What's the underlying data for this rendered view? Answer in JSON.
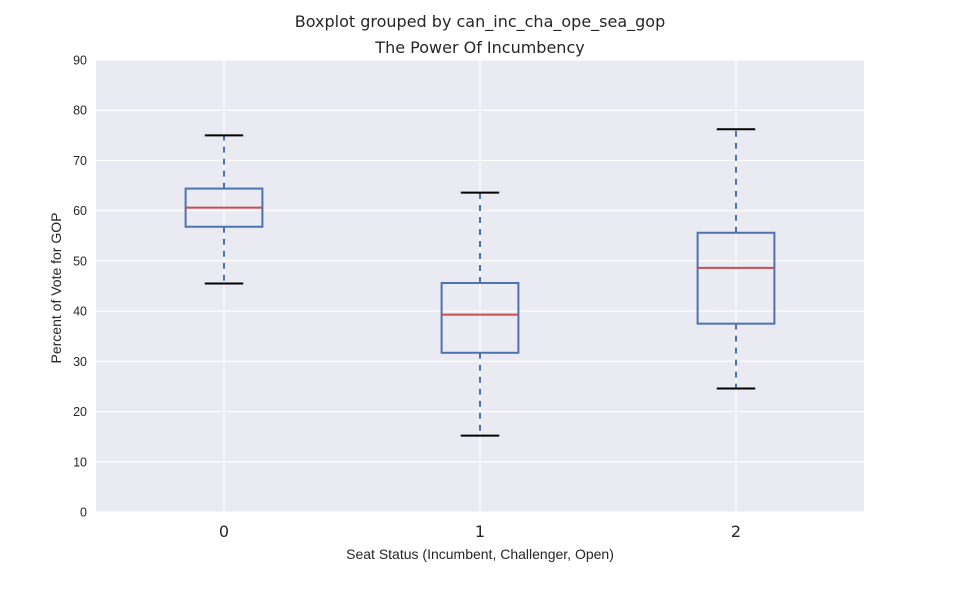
{
  "chart_data": {
    "type": "boxplot",
    "suptitle": "Boxplot grouped by can_inc_cha_ope_sea_gop",
    "title": "The Power Of Incumbency",
    "xlabel": "Seat Status (Incumbent, Challenger, Open)",
    "ylabel": "Percent of Vote for GOP",
    "ylim": [
      0,
      90
    ],
    "yticks": [
      "0",
      "10",
      "20",
      "30",
      "40",
      "50",
      "60",
      "70",
      "80",
      "90"
    ],
    "categories": [
      "0",
      "1",
      "2"
    ],
    "boxes": [
      {
        "category": "0",
        "whisker_low": 45.5,
        "q1": 56.8,
        "median": 60.6,
        "q3": 64.4,
        "whisker_high": 75.0
      },
      {
        "category": "1",
        "whisker_low": 15.2,
        "q1": 31.7,
        "median": 39.3,
        "q3": 45.6,
        "whisker_high": 63.6
      },
      {
        "category": "2",
        "whisker_low": 24.6,
        "q1": 37.5,
        "median": 48.6,
        "q3": 55.6,
        "whisker_high": 76.2
      }
    ],
    "grid": true,
    "colors": {
      "plot_background": "#EAEAF2",
      "grid": "#FFFFFF",
      "box": "#4C72B0",
      "median": "#C44E52",
      "caps": "#000000"
    }
  }
}
